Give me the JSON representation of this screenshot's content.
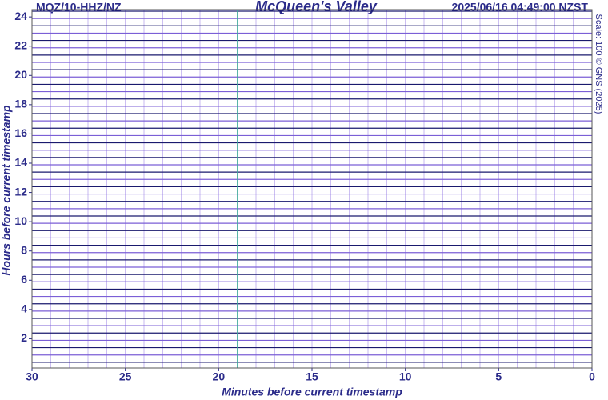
{
  "chart_data": {
    "type": "helicorder",
    "station": "MQZ/10-HHZ/NZ",
    "title": "McQueen's Valley",
    "timestamp": "2025/06/16 04:49:00 NZST",
    "scale_note": "Scale: 100 © GNS (2025)",
    "xlabel": "Minutes before current timestamp",
    "ylabel": "Hours before current timestamp",
    "xlim": [
      30,
      0
    ],
    "xticks": [
      30,
      25,
      20,
      15,
      10,
      5,
      0
    ],
    "ylim": [
      0,
      24.5
    ],
    "yticks": [
      2,
      4,
      6,
      8,
      10,
      12,
      14,
      16,
      18,
      20,
      22,
      24
    ],
    "trace_colors": [
      "#1a1a6e",
      "#7b5fd6"
    ],
    "grid_color": "#b9a8ee",
    "marker_color": "#3fae9a"
  }
}
